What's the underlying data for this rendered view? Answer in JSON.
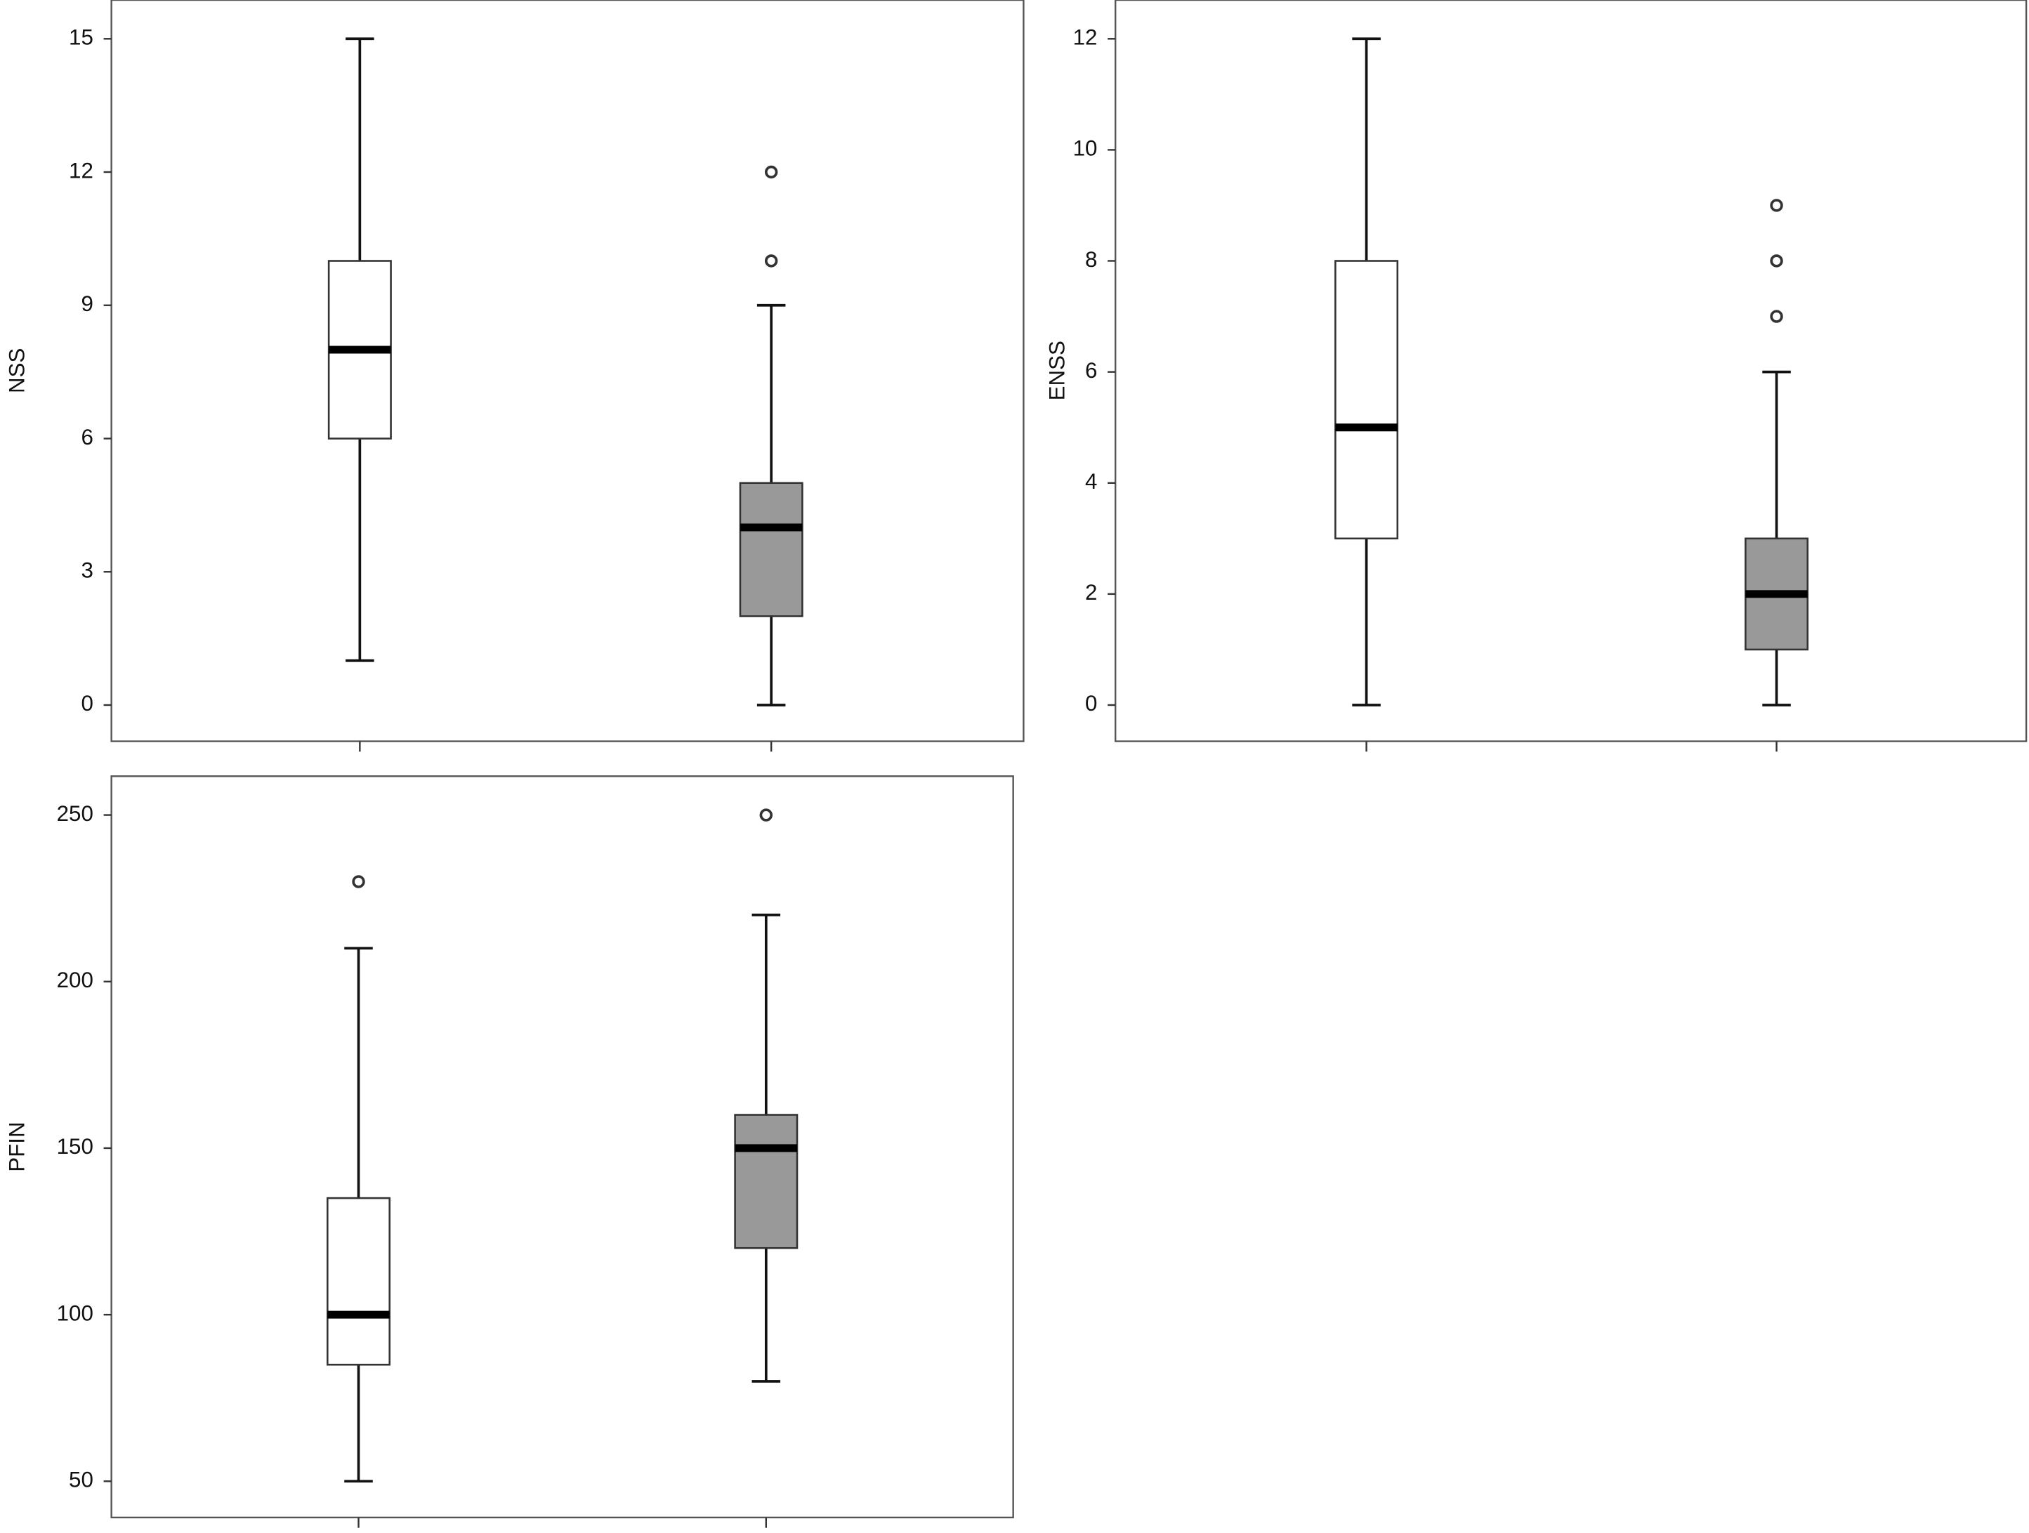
{
  "chart_data": [
    {
      "type": "box",
      "ylabel": "NSS",
      "ylim": [
        -0.8,
        15.9
      ],
      "yticks": [
        0,
        3,
        6,
        9,
        12,
        15
      ],
      "grid": false,
      "groups": [
        {
          "min": 1,
          "q1": 6,
          "median": 8,
          "q3": 10,
          "max": 15,
          "outliers": [],
          "color": "#ffffff"
        },
        {
          "min": 0,
          "q1": 2,
          "median": 4,
          "q3": 5,
          "max": 9,
          "outliers": [
            10,
            12
          ],
          "color": "#999999"
        }
      ]
    },
    {
      "type": "box",
      "ylabel": "ENSS",
      "ylim": [
        -0.65,
        12.7
      ],
      "yticks": [
        0,
        2,
        4,
        6,
        8,
        10,
        12
      ],
      "grid": false,
      "groups": [
        {
          "min": 0,
          "q1": 3,
          "median": 5,
          "q3": 8,
          "max": 12,
          "outliers": [],
          "color": "#ffffff"
        },
        {
          "min": 0,
          "q1": 1,
          "median": 2,
          "q3": 3,
          "max": 6,
          "outliers": [
            7,
            8,
            9
          ],
          "color": "#999999"
        }
      ]
    },
    {
      "type": "box",
      "ylabel": "PFIN",
      "ylim": [
        39,
        262
      ],
      "yticks": [
        50,
        100,
        150,
        200,
        250
      ],
      "grid": false,
      "groups": [
        {
          "min": 50,
          "q1": 85,
          "median": 100,
          "q3": 135,
          "max": 210,
          "outliers": [
            230
          ],
          "color": "#ffffff"
        },
        {
          "min": 80,
          "q1": 120,
          "median": 150,
          "q3": 160,
          "max": 220,
          "outliers": [
            250
          ],
          "color": "#999999"
        }
      ]
    }
  ]
}
